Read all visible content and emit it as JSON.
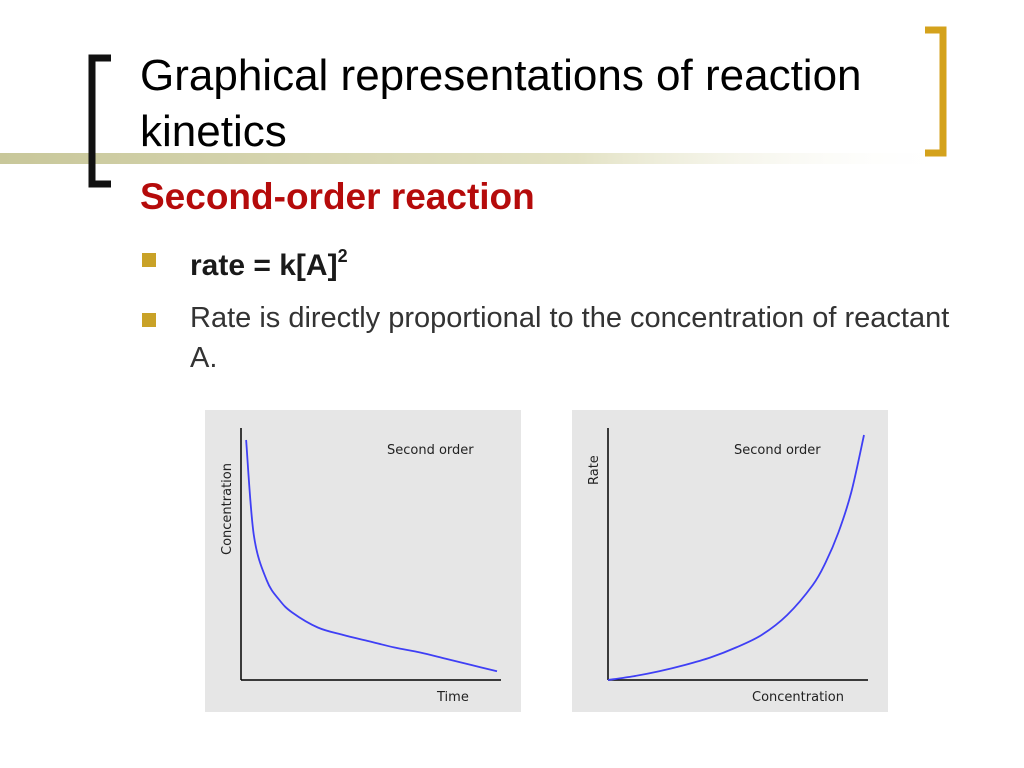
{
  "slide": {
    "title": "Graphical representations of reaction kinetics",
    "subtitle": "Second-order reaction",
    "bullets": [
      {
        "text": "rate = k[A]",
        "superscript": "2"
      },
      {
        "text": "Rate is directly proportional to the concentration of reactant A."
      }
    ],
    "colors": {
      "accent": "#c9a227",
      "subtitle": "#b50b0b",
      "panel": "#e6e6e6",
      "curve": "#3f3ff5"
    }
  },
  "chart_data": [
    {
      "type": "line",
      "label": "Second order",
      "xlabel": "Time",
      "ylabel": "Concentration",
      "series": [
        {
          "x": [
            0.02,
            0.05,
            0.1,
            0.15,
            0.2,
            0.3,
            0.4,
            0.5,
            0.6,
            0.7,
            0.8,
            0.9,
            1.0
          ],
          "values": [
            0.96,
            0.58,
            0.4,
            0.32,
            0.27,
            0.21,
            0.18,
            0.155,
            0.13,
            0.11,
            0.085,
            0.06,
            0.035
          ]
        }
      ]
    },
    {
      "type": "line",
      "label": "Second order",
      "xlabel": "Concentration",
      "ylabel": "Rate",
      "series": [
        {
          "x": [
            0.0,
            0.1,
            0.2,
            0.3,
            0.4,
            0.5,
            0.6,
            0.7,
            0.8,
            0.85,
            0.9,
            0.95,
            1.0
          ],
          "values": [
            0.0,
            0.015,
            0.035,
            0.06,
            0.09,
            0.13,
            0.18,
            0.26,
            0.38,
            0.47,
            0.59,
            0.75,
            0.98
          ]
        }
      ]
    }
  ]
}
